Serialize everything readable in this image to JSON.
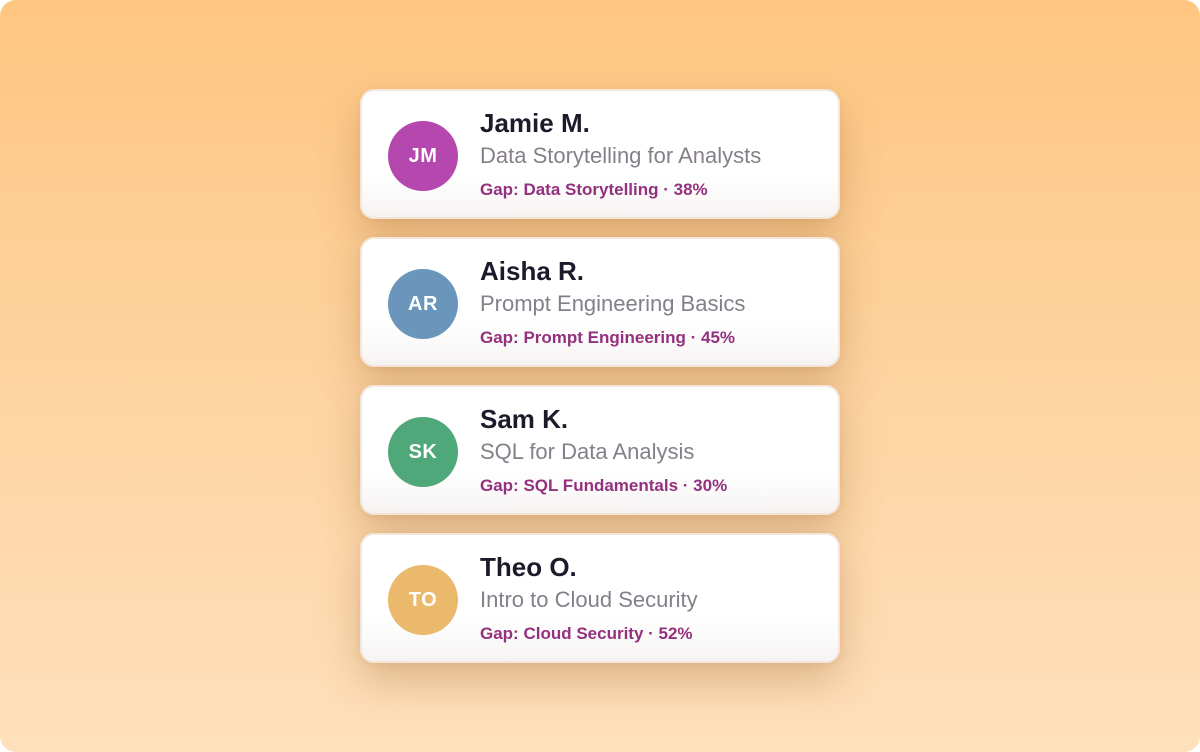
{
  "colors": {
    "name_text": "#1F1A2B",
    "course_text": "#857F89",
    "gap_text": "#93317F",
    "avatar_text": "#FFFFFF"
  },
  "learners": [
    {
      "initials": "JM",
      "name": "Jamie M.",
      "course": "Data Storytelling for Analysts",
      "gap": "Gap: Data Storytelling · 38%",
      "avatar_color": "#B548AE"
    },
    {
      "initials": "AR",
      "name": "Aisha R.",
      "course": "Prompt Engineering Basics",
      "gap": "Gap: Prompt Engineering · 45%",
      "avatar_color": "#6A96BC"
    },
    {
      "initials": "SK",
      "name": "Sam K.",
      "course": "SQL for Data Analysis",
      "gap": "Gap: SQL Fundamentals · 30%",
      "avatar_color": "#4EA87A"
    },
    {
      "initials": "TO",
      "name": "Theo O.",
      "course": "Intro to Cloud Security",
      "gap": "Gap: Cloud Security · 52%",
      "avatar_color": "#EBB96B"
    }
  ]
}
